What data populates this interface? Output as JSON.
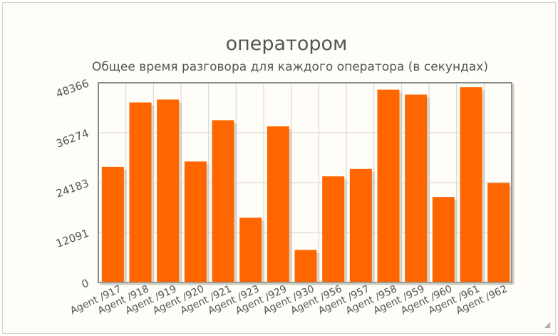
{
  "chart_data": {
    "type": "bar",
    "title": "оператором",
    "subtitle": "Общее время разговора для каждого оператора (в секундах)",
    "xlabel": "",
    "ylabel": "",
    "categories": [
      "Agent /917",
      "Agent /918",
      "Agent /919",
      "Agent /920",
      "Agent /921",
      "Agent /923",
      "Agent /929",
      "Agent /930",
      "Agent /956",
      "Agent /957",
      "Agent /958",
      "Agent /959",
      "Agent /960",
      "Agent /961",
      "Agent /962"
    ],
    "series": [
      {
        "values": [
          28000,
          43600,
          44300,
          29300,
          39300,
          15700,
          37800,
          7900,
          25700,
          27500,
          46700,
          45500,
          20700,
          47300,
          24100
        ]
      }
    ],
    "ylim": [
      0,
      48366
    ],
    "yticks": [
      "0",
      "12091",
      "24183",
      "36274",
      "48366"
    ],
    "grid": true,
    "colors": {
      "bar": "#ff6600",
      "bar_shadow": "#c9c6bc",
      "grid": "#d4d2cb",
      "axis": "#8a8a8a",
      "text": "#555555"
    }
  },
  "icons": {
    "resize": "resize-grip-icon"
  }
}
